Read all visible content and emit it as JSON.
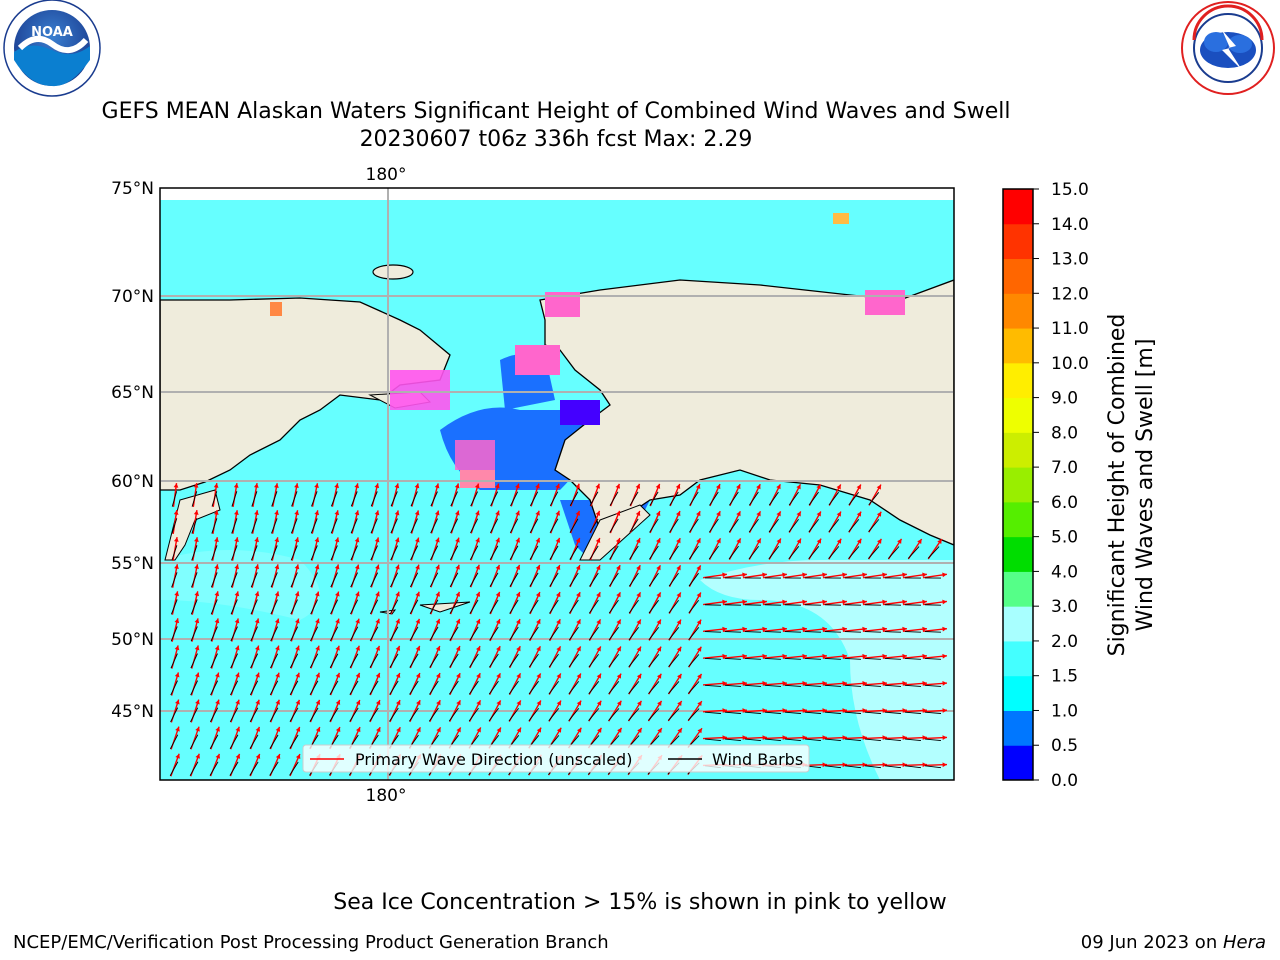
{
  "logos": {
    "noaa": {
      "center_text": "NOAA",
      "ring_text": "NATIONAL OCEANIC AND ATMOSPHERIC ADMINISTRATION · U.S. DEPARTMENT OF COMMERCE"
    },
    "nws": {
      "ring_text": "NATIONAL WEATHER SERVICE"
    }
  },
  "title": {
    "line1": "GEFS MEAN Alaskan Waters Significant Height of Combined Wind Waves and Swell",
    "line2": "20230607 t06z 336h fcst   Max: 2.29"
  },
  "map": {
    "lat_labels": [
      "75°N",
      "70°N",
      "65°N",
      "60°N",
      "55°N",
      "50°N",
      "45°N"
    ],
    "lon_label_top": "180°",
    "lon_label_bottom": "180°",
    "legend": {
      "wave_label": "Primary Wave Direction (unscaled)",
      "barb_label": "Wind Barbs",
      "wave_color": "#ff0000",
      "barb_color": "#000000"
    },
    "land_color": "#efecdc",
    "ocean_color": "#66ffff"
  },
  "colorbar": {
    "title_line1": "Significant Height of Combined",
    "title_line2": "Wind Waves and Swell [m]",
    "ticks": [
      "0.0",
      "0.5",
      "1.0",
      "1.5",
      "2.0",
      "3.0",
      "4.0",
      "5.0",
      "6.0",
      "7.0",
      "8.0",
      "9.0",
      "10.0",
      "11.0",
      "12.0",
      "13.0",
      "14.0",
      "15.0"
    ],
    "colors": [
      "#0000ff",
      "#0077ff",
      "#00ffff",
      "#44ffff",
      "#a8ffff",
      "#55ff88",
      "#00dd00",
      "#55ee00",
      "#99ee00",
      "#ccee00",
      "#eeff00",
      "#ffee00",
      "#ffbb00",
      "#ff8800",
      "#ff6600",
      "#ff3300",
      "#ff0000"
    ]
  },
  "notes": {
    "sea_ice": "Sea Ice Concentration > 15% is shown in pink to yellow"
  },
  "footer": {
    "left": "NCEP/EMC/Verification Post Processing Product Generation Branch",
    "right_prefix": "09 Jun 2023 on ",
    "right_host": "Hera"
  }
}
